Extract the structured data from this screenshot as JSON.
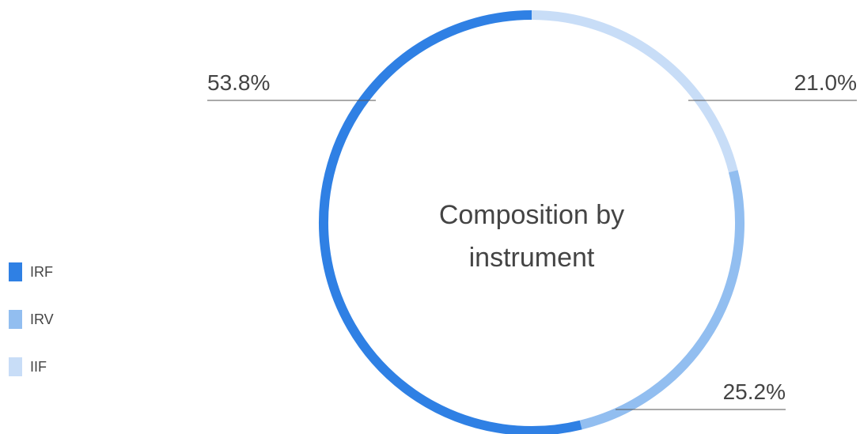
{
  "chart_data": {
    "type": "pie",
    "variant": "donut",
    "center_title_lines": [
      "Composition by",
      "instrument"
    ],
    "series": [
      {
        "name": "IRF",
        "value": 53.8,
        "label": "53.8%",
        "color": "#2f80e4"
      },
      {
        "name": "IRV",
        "value": 25.2,
        "label": "25.2%",
        "color": "#92bef0"
      },
      {
        "name": "IIF",
        "value": 21.0,
        "label": "21.0%",
        "color": "#c8ddf7"
      }
    ],
    "legend": {
      "position": "left",
      "items": [
        "IRF",
        "IRV",
        "IIF"
      ]
    }
  }
}
